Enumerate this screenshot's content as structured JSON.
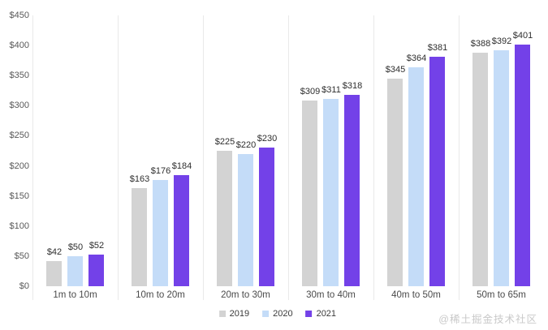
{
  "watermark": "@稀土掘金技术社区",
  "colors": {
    "background": "#ffffff",
    "separator": "#e9e9e9",
    "tick_label": "#595959",
    "value_label": "#2e2e2e",
    "category_label": "#4a4a4a",
    "watermark": "#c9c9c9"
  },
  "chart_data": {
    "type": "bar",
    "title": "",
    "xlabel": "",
    "ylabel": "",
    "categories": [
      "1m to 10m",
      "10m to 20m",
      "20m to 30m",
      "30m to 40m",
      "40m to 50m",
      "50m to 65m"
    ],
    "series": [
      {
        "name": "2019",
        "color": "#d3d3d3",
        "values": [
          42,
          163,
          225,
          309,
          345,
          388
        ]
      },
      {
        "name": "2020",
        "color": "#c4dcf8",
        "values": [
          50,
          176,
          220,
          311,
          364,
          392
        ]
      },
      {
        "name": "2021",
        "color": "#7341e8",
        "values": [
          52,
          184,
          230,
          318,
          381,
          401
        ]
      }
    ],
    "value_prefix": "$",
    "ylim": [
      0,
      450
    ],
    "ytick_step": 50,
    "ytick_labels": [
      "$0",
      "$50",
      "$100",
      "$150",
      "$200",
      "$250",
      "$300",
      "$350",
      "$400",
      "$450"
    ],
    "grid": "vertical-group-separators-only",
    "value_labels_shown": true,
    "legend_position": "bottom-center"
  }
}
